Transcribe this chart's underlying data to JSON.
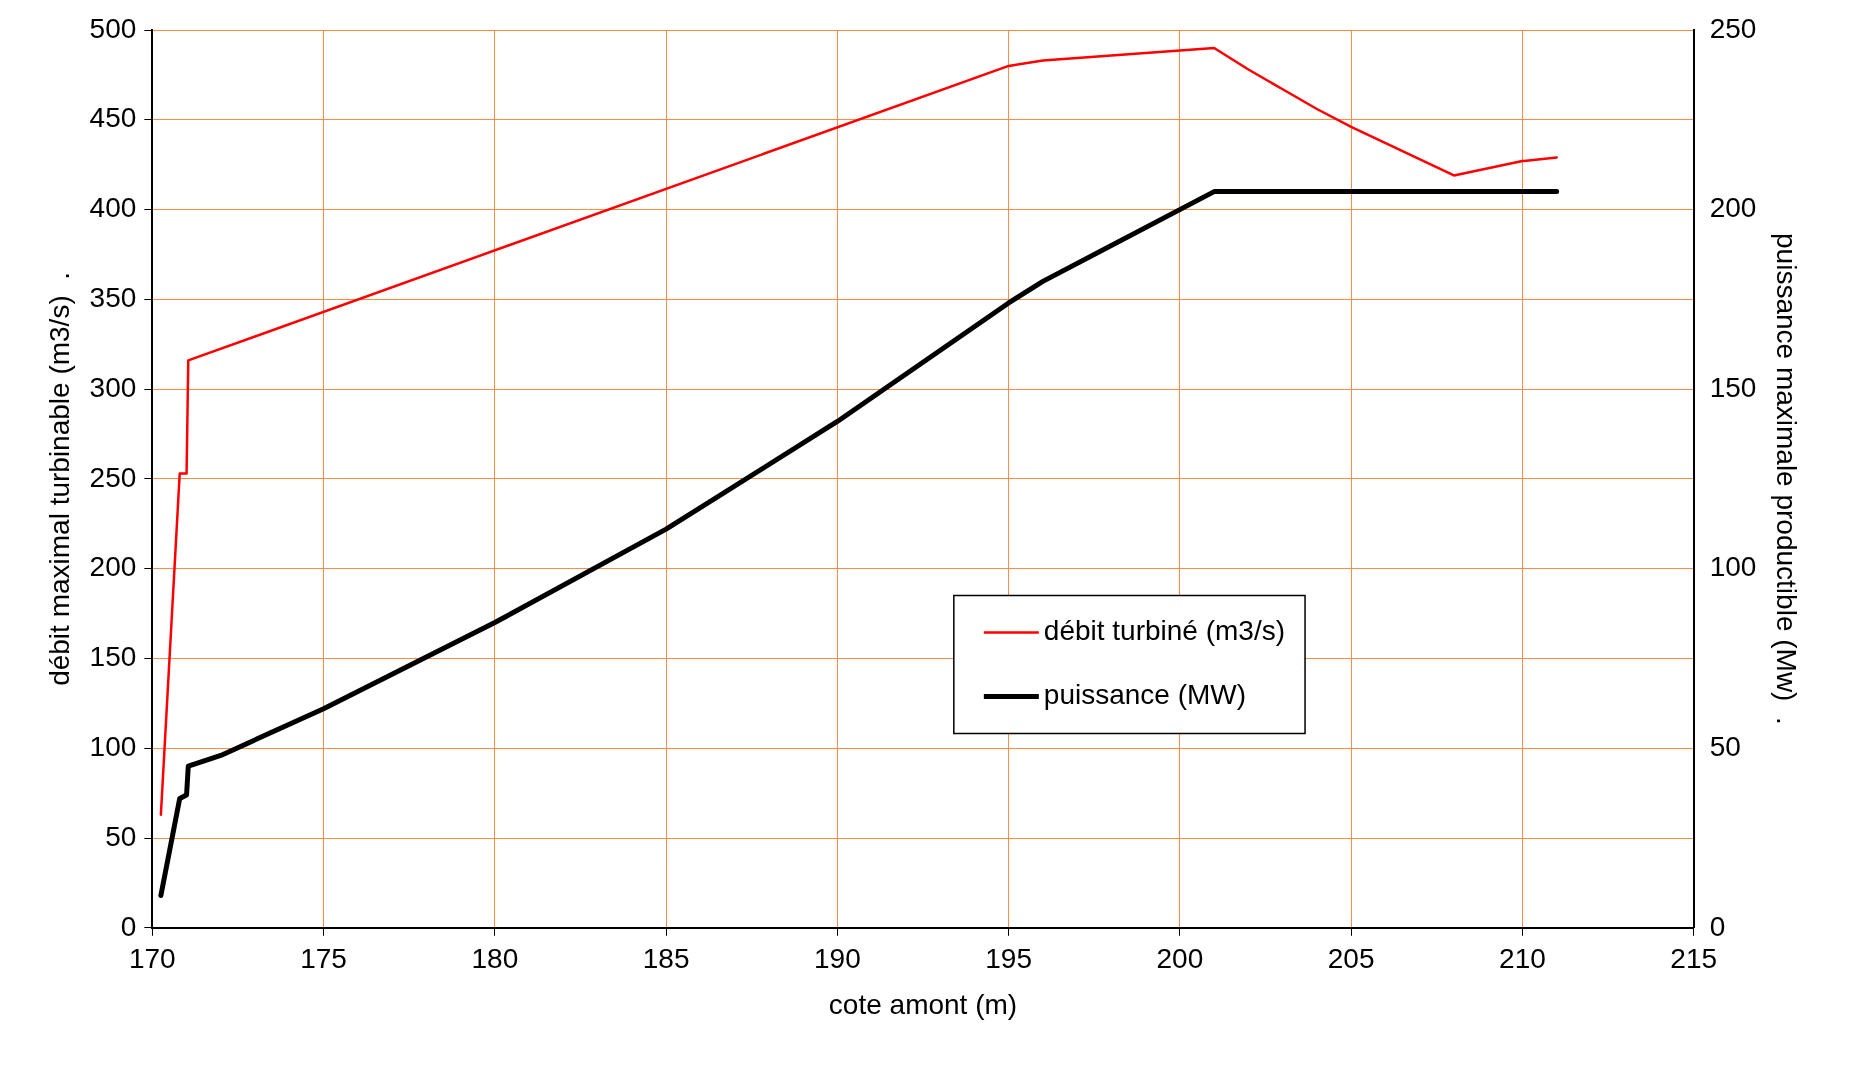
{
  "chart_data": {
    "type": "line",
    "xlabel": "cote amont (m)",
    "ylabel": "débit maximal turbinable (m3/s)  .",
    "y2label": "puissance maximale productible (Mw)  .",
    "xlim": [
      170,
      215
    ],
    "xticks": [
      170,
      175,
      180,
      185,
      190,
      195,
      200,
      205,
      210,
      215
    ],
    "ylim": [
      0,
      500
    ],
    "yticks": [
      0,
      50,
      100,
      150,
      200,
      250,
      300,
      350,
      400,
      450,
      500
    ],
    "y2lim": [
      0,
      250
    ],
    "y2ticks": [
      0,
      50,
      100,
      150,
      200,
      250
    ],
    "grid": true,
    "legend": "right",
    "marker": "none",
    "line_style": "solid",
    "series": [
      {
        "name": "débit turbiné (m3/s)",
        "color": "#ff0000",
        "x": [
          170.25,
          170.8,
          171,
          171.05,
          195,
          196,
          201,
          202,
          203,
          204,
          205,
          208,
          209,
          210,
          211
        ],
        "values": [
          63,
          253,
          253,
          316,
          480,
          483,
          490,
          478,
          467,
          456,
          446,
          419,
          423,
          427,
          429
        ]
      },
      {
        "name": "puissance (MW)",
        "color": "#000000",
        "axis": "y2",
        "x": [
          170.25,
          170.8,
          171,
          171.05,
          172,
          175,
          180,
          185,
          190,
          195,
          196,
          201,
          211
        ],
        "values": [
          9,
          36,
          37,
          45,
          48,
          61,
          85,
          111,
          141,
          174,
          180,
          205,
          205
        ]
      }
    ]
  }
}
